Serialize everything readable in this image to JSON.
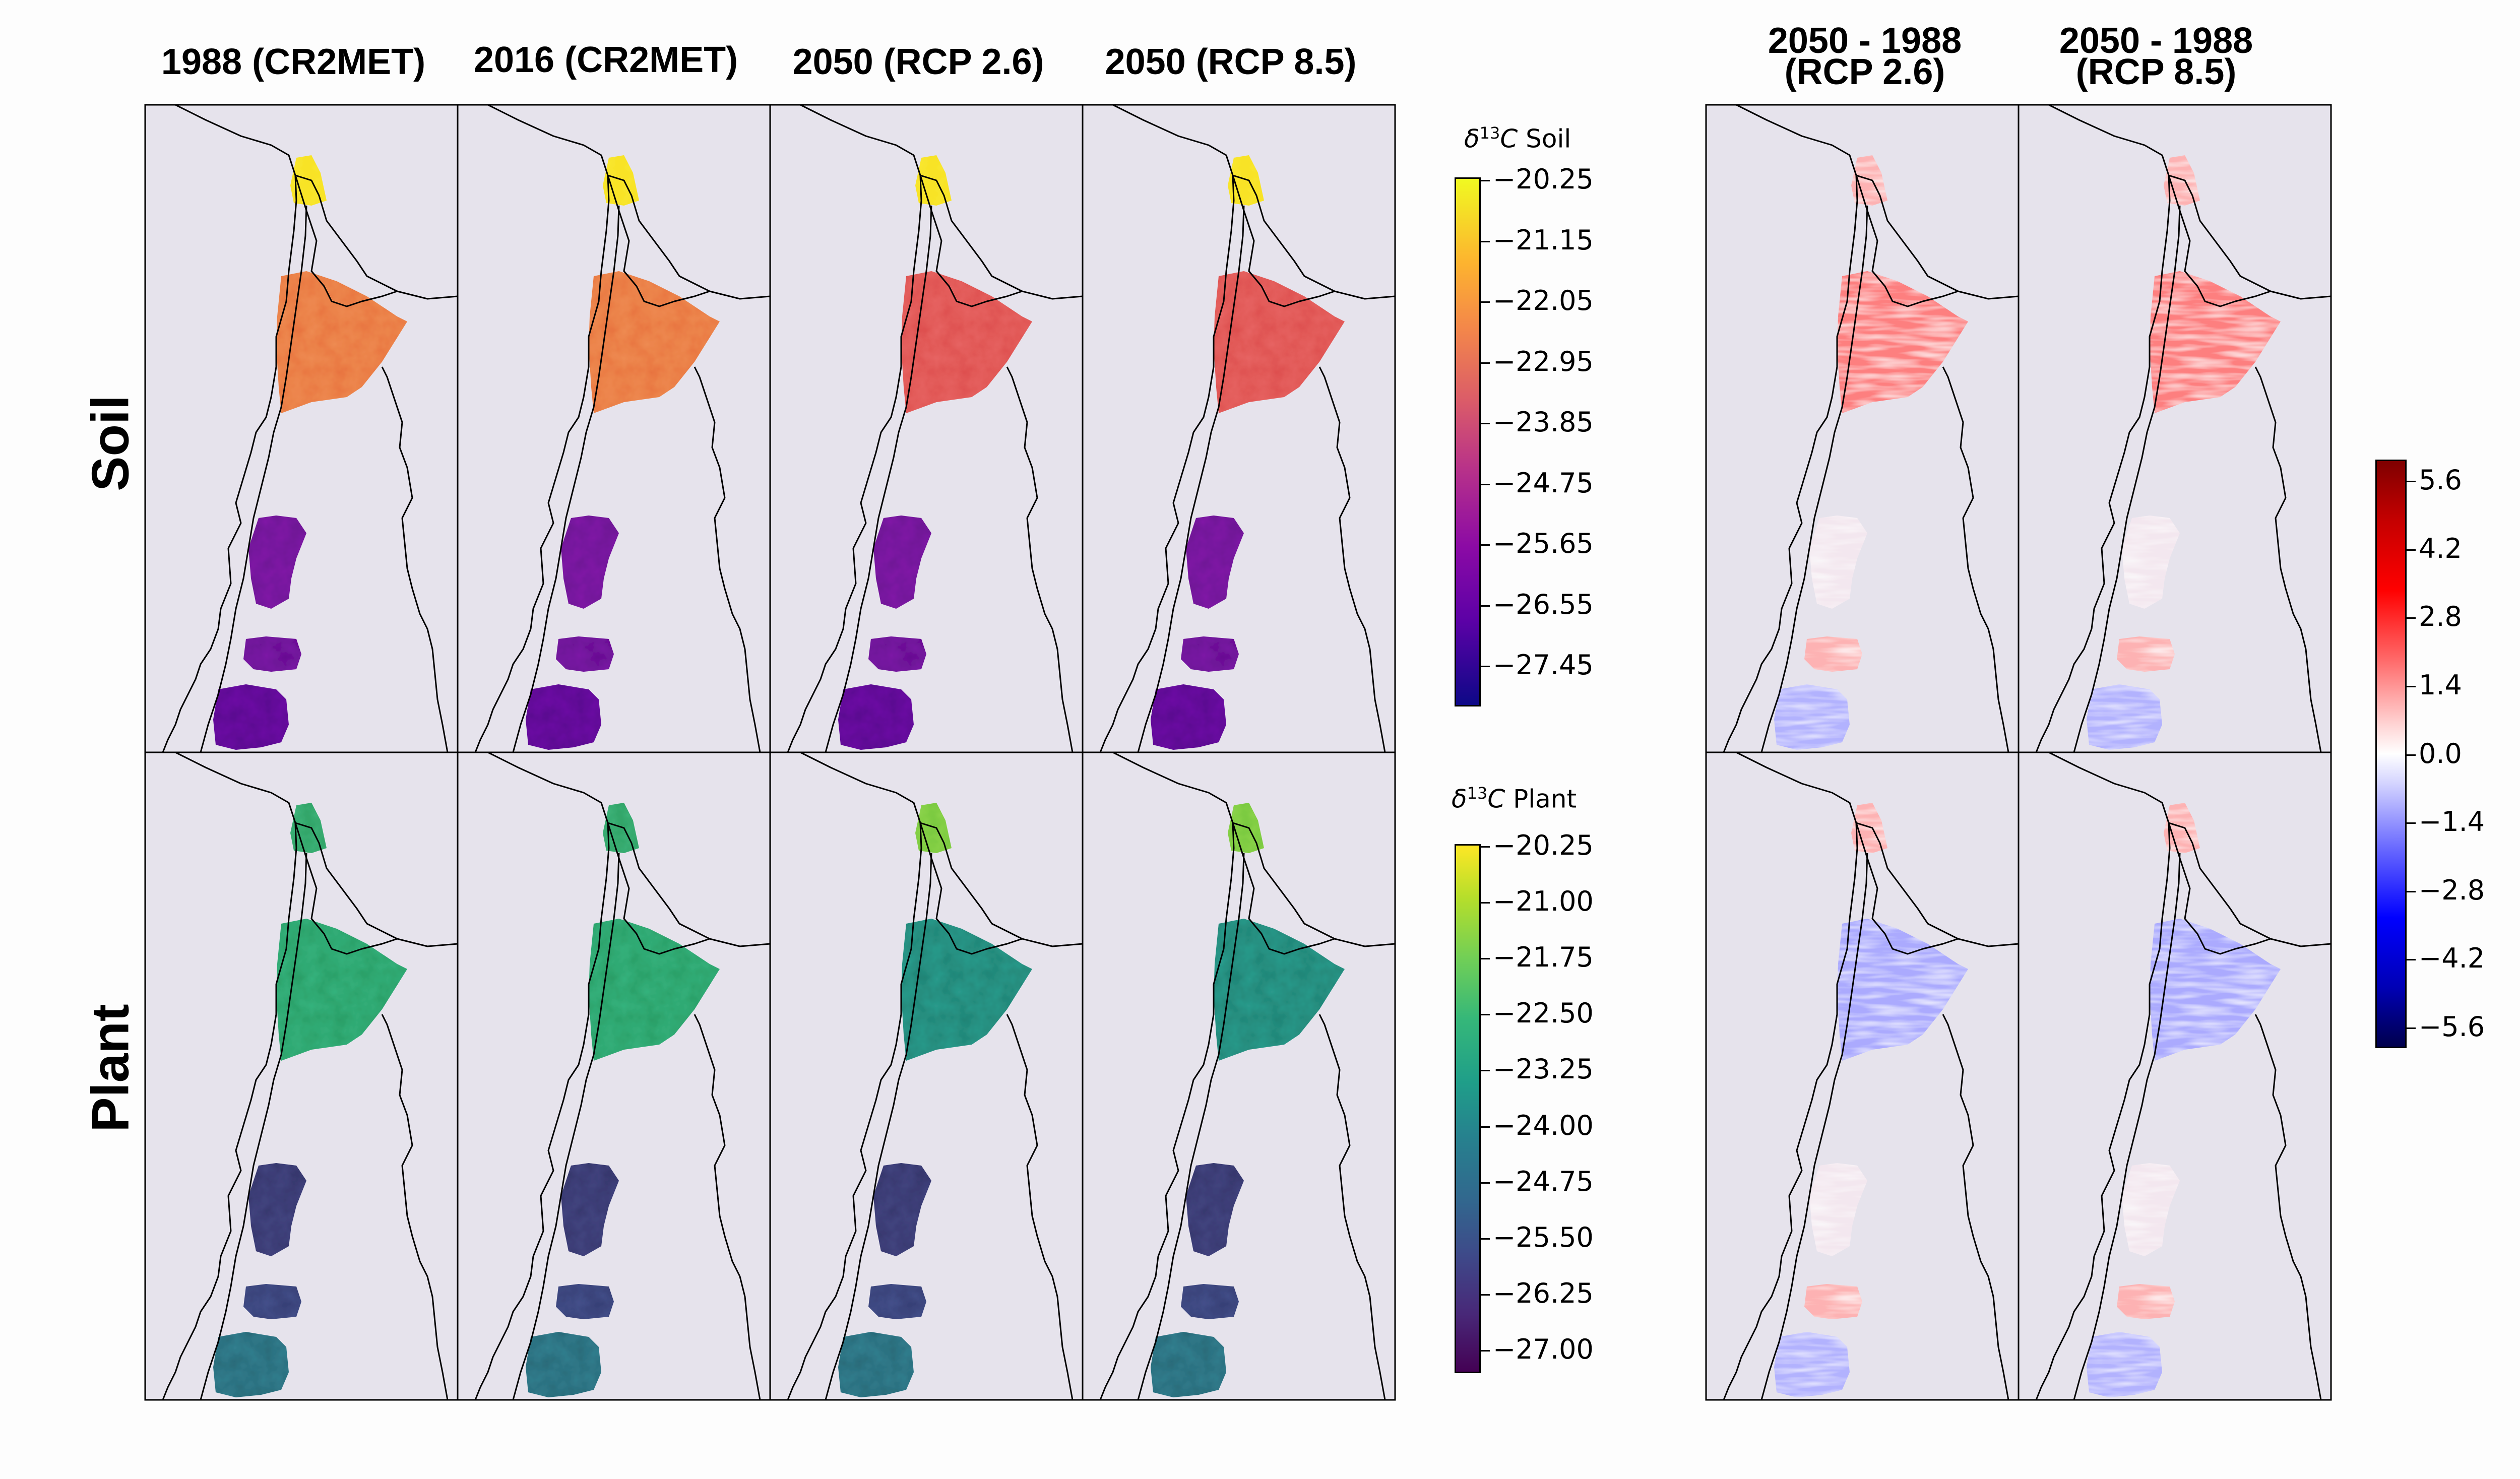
{
  "columns": {
    "c1988": "1988 (CR2MET)",
    "c2016": "2016 (CR2MET)",
    "c2050_26": "2050 (RCP 2.6)",
    "c2050_85": "2050 (RCP 8.5)",
    "diff26_line1": "2050 - 1988",
    "diff26_line2": "(RCP 2.6)",
    "diff85_line1": "2050 - 1988",
    "diff85_line2": "(RCP 8.5)"
  },
  "rows": {
    "soil": "Soil",
    "plant": "Plant"
  },
  "colorbars": {
    "soil": {
      "title_html": "δ<sup>13</sup>C Soil",
      "title": "δ13C Soil",
      "colormap": "plasma",
      "ticks": [
        "−20.25",
        "−21.15",
        "−22.05",
        "−22.95",
        "−23.85",
        "−24.75",
        "−25.65",
        "−26.55",
        "−27.45"
      ]
    },
    "plant": {
      "title": "δ13C Plant",
      "colormap": "viridis",
      "ticks": [
        "−20.25",
        "−21.00",
        "−21.75",
        "−22.50",
        "−23.25",
        "−24.00",
        "−24.75",
        "−25.50",
        "−26.25",
        "−27.00"
      ]
    },
    "difference": {
      "colormap": "seismic",
      "ticks": [
        "5.6",
        "4.2",
        "2.8",
        "1.4",
        "0.0",
        "−1.4",
        "−2.8",
        "−4.2",
        "−5.6"
      ]
    }
  },
  "colors": {
    "panel_background": "#e6e3ec",
    "soil_low": "#1a0a8a",
    "soil_mid": "#c0339f",
    "soil_high": "#fbea25",
    "plant_low": "#460a5d",
    "plant_mid": "#21918c",
    "plant_high": "#fde725",
    "diff_neg": "#0a0a8a",
    "diff_pos": "#a00000"
  }
}
